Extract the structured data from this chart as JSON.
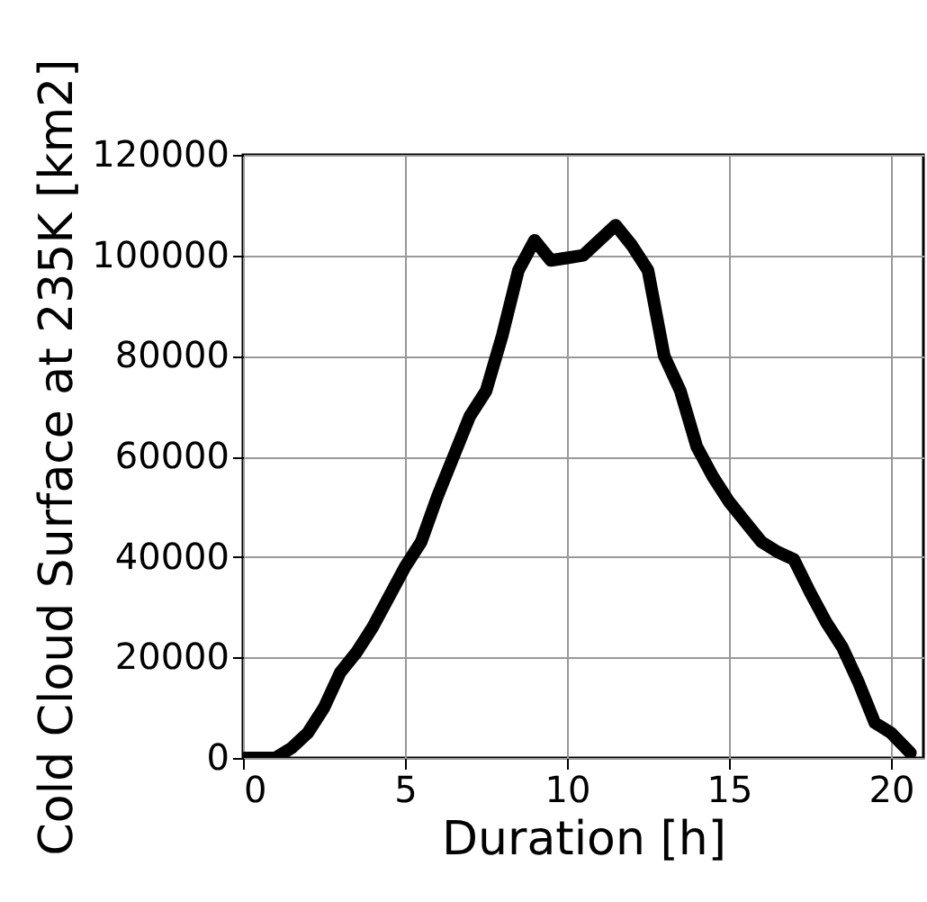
{
  "chart_data": {
    "type": "line",
    "xlabel": "Duration [h]",
    "ylabel": "Cold Cloud Surface at 235K [km2]",
    "x": [
      0,
      1,
      1.5,
      2,
      2.5,
      3,
      3.5,
      4,
      4.5,
      5,
      5.5,
      6,
      6.5,
      7,
      7.5,
      8,
      8.5,
      9,
      9.5,
      10,
      10.5,
      11,
      11.5,
      12,
      12.5,
      13,
      13.5,
      14,
      14.5,
      15,
      15.5,
      16,
      16.5,
      17,
      17.5,
      18,
      18.5,
      19,
      19.5,
      20,
      20.6
    ],
    "series": [
      {
        "color": "#000000",
        "values": [
          0,
          0,
          2000,
          5000,
          10000,
          17000,
          21000,
          26000,
          32000,
          38000,
          43000,
          52000,
          60000,
          68000,
          73000,
          84000,
          97000,
          103000,
          99000,
          99500,
          100000,
          103000,
          106000,
          102000,
          97000,
          80000,
          73000,
          62000,
          56000,
          51000,
          47000,
          43000,
          41000,
          39500,
          33000,
          27000,
          22000,
          15000,
          7000,
          5000,
          1000
        ]
      }
    ],
    "xlim": [
      0,
      21
    ],
    "xticks": [
      0,
      5,
      10,
      15,
      20
    ],
    "ylim": [
      0,
      120000
    ],
    "yticks": [
      0,
      20000,
      40000,
      60000,
      80000,
      100000,
      120000
    ],
    "grid": true,
    "line_style": "solid",
    "marker": "none"
  }
}
